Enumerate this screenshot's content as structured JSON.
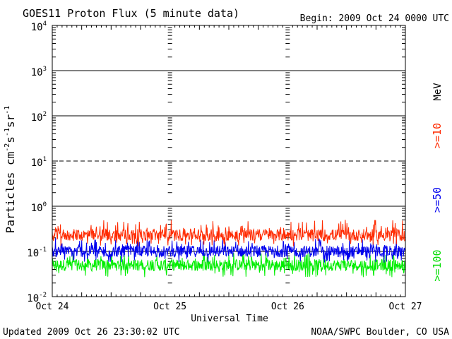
{
  "chart_data": {
    "type": "line",
    "title": "GOES11 Proton Flux (5 minute data)",
    "begin_label": "Begin: 2009 Oct 24 0000 UTC",
    "ylabel_base": "Particles cm",
    "ylabel_exp1": "-2",
    "ylabel_mid1": "s",
    "ylabel_exp2": "-1",
    "ylabel_mid2": "sr",
    "ylabel_exp3": "-1",
    "xlabel": "Universal Time",
    "updated": "Updated 2009 Oct 26 23:30:02 UTC",
    "credit": "NOAA/SWPC Boulder, CO USA",
    "unit": "MeV",
    "yscale": "log",
    "ylim": [
      0.01,
      10000
    ],
    "xlim": [
      "2009-10-24 00:00",
      "2009-10-27 00:00"
    ],
    "y_ticks": [
      {
        "base": "10",
        "exp": "4"
      },
      {
        "base": "10",
        "exp": "3"
      },
      {
        "base": "10",
        "exp": "2"
      },
      {
        "base": "10",
        "exp": "1"
      },
      {
        "base": "10",
        "exp": "0"
      },
      {
        "base": "10",
        "exp": "-1"
      },
      {
        "base": "10",
        "exp": "-2"
      }
    ],
    "x_ticks": [
      "Oct 24",
      "Oct 25",
      "Oct 26",
      "Oct 27"
    ],
    "reference_lines": [
      {
        "value": 1000,
        "style": "solid"
      },
      {
        "value": 100,
        "style": "solid"
      },
      {
        "value": 10,
        "style": "dashed"
      },
      {
        "value": 1,
        "style": "solid"
      },
      {
        "value": 0.1,
        "style": "solid"
      }
    ],
    "series": [
      {
        "name": ">=10",
        "color": "#ff2a00",
        "typical": 0.23,
        "low": 0.13,
        "high": 0.5
      },
      {
        "name": ">=50",
        "color": "#0000ee",
        "typical": 0.1,
        "low": 0.055,
        "high": 0.2
      },
      {
        "name": ">=100",
        "color": "#00ee00",
        "typical": 0.05,
        "low": 0.027,
        "high": 0.1
      }
    ]
  }
}
